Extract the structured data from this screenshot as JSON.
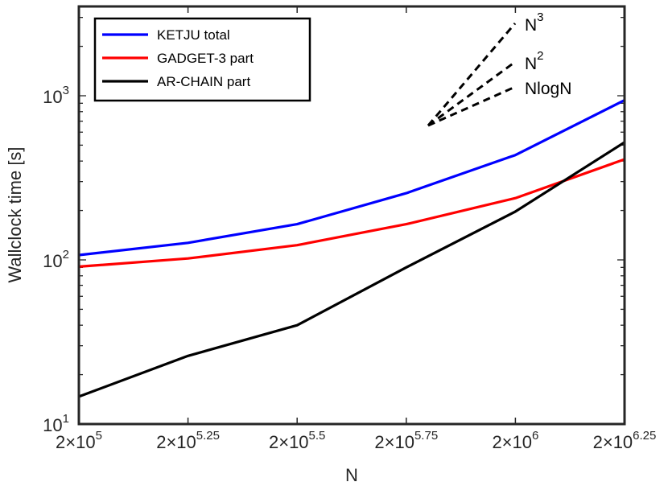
{
  "chart_data": {
    "type": "line",
    "x_scale": "log",
    "y_scale": "log",
    "xlabel": "N",
    "ylabel": "Wallclock time [s]",
    "x_exponents": [
      5,
      5.25,
      5.5,
      5.75,
      6,
      6.25
    ],
    "xticks": [
      {
        "base": "2×10",
        "exp": "5"
      },
      {
        "base": "2×10",
        "exp": "5.25"
      },
      {
        "base": "2×10",
        "exp": "5.5"
      },
      {
        "base": "2×10",
        "exp": "5.75"
      },
      {
        "base": "2×10",
        "exp": "6"
      },
      {
        "base": "2×10",
        "exp": "6.25"
      }
    ],
    "yticks": [
      {
        "value": 10,
        "base": "10",
        "exp": "1"
      },
      {
        "value": 100,
        "base": "10",
        "exp": "2"
      },
      {
        "value": 1000,
        "base": "10",
        "exp": "3"
      }
    ],
    "ylim": [
      10,
      3500
    ],
    "series": [
      {
        "name": "KETJU total",
        "color": "#0000ff",
        "values": [
          107,
          127,
          165,
          255,
          435,
          940
        ]
      },
      {
        "name": "GADGET-3 part",
        "color": "#ff0000",
        "values": [
          91,
          102,
          123,
          165,
          238,
          410
        ]
      },
      {
        "name": "AR-CHAIN part",
        "color": "#000000",
        "values": [
          14.7,
          26,
          40,
          90,
          197,
          520
        ]
      }
    ],
    "legend_position": "top-left",
    "scaling_guides": [
      {
        "label_base": "N",
        "label_exp": "3",
        "slope": 3
      },
      {
        "label_base": "N",
        "label_exp": "2",
        "slope": 2
      },
      {
        "label_base": "NlogN",
        "label_exp": "",
        "slope": 1.2
      }
    ]
  }
}
